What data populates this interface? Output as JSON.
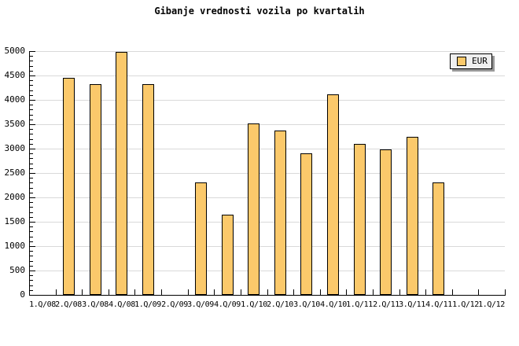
{
  "title": "Gibanje vrednosti vozila po kvartalih",
  "legend": {
    "label": "EUR"
  },
  "colors": {
    "background": "#FFFFFF",
    "bar_fill": "#FBC96B",
    "bar_border": "#000000",
    "gridline": "#D9D9D9",
    "axis": "#000000",
    "text": "#000000",
    "legend_bg": "#EFEFEF",
    "legend_border": "#000000",
    "legend_shadow": "#999999"
  },
  "chart_data": {
    "type": "bar",
    "title": "Gibanje vrednosti vozila po kvartalih",
    "categories": [
      "1.Q/08",
      "2.Q/08",
      "3.Q/08",
      "4.Q/08",
      "1.Q/09",
      "2.Q/09",
      "3.Q/09",
      "4.Q/09",
      "1.Q/10",
      "2.Q/10",
      "3.Q/10",
      "4.Q/10",
      "1.Q/11",
      "2.Q/11",
      "3.Q/11",
      "4.Q/11",
      "1.Q/12",
      "1.Q/12"
    ],
    "series": [
      {
        "name": "EUR",
        "values": [
          null,
          4450,
          4320,
          4990,
          4320,
          null,
          2300,
          1650,
          3510,
          3370,
          2900,
          4110,
          3100,
          2980,
          3240,
          2300,
          null,
          null
        ]
      }
    ],
    "xlabel": "",
    "ylabel": "",
    "ylim": [
      0,
      5000
    ],
    "ytick_step": 500,
    "ytick_minor_step": 100,
    "grid": "horizontal",
    "legend_position": "top-right"
  }
}
